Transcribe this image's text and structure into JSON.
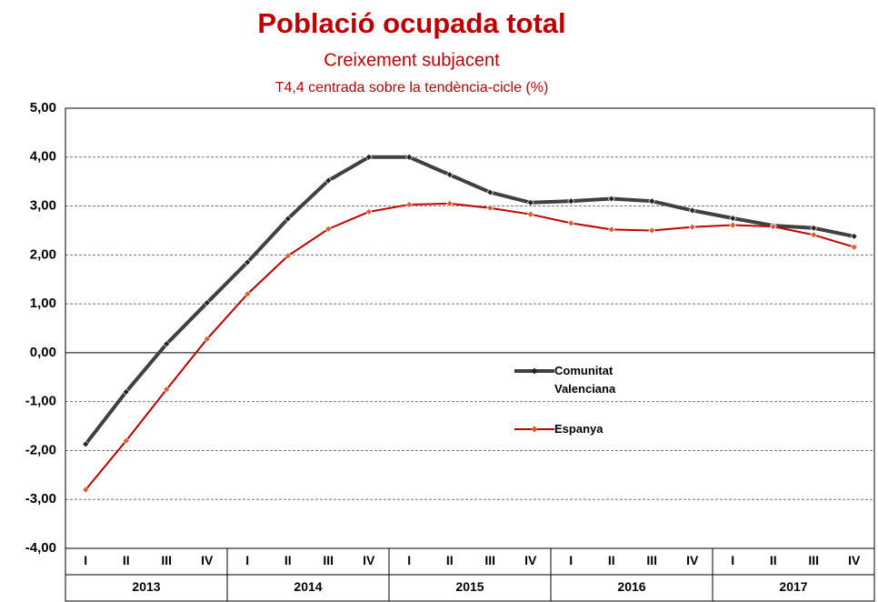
{
  "chart_data": {
    "type": "line",
    "title": "Població ocupada total",
    "subtitle": "Creixement subjacent",
    "subtitle2": "T4,4 centrada sobre la tendència-cicle (%)",
    "categories": [
      "I",
      "II",
      "III",
      "IV",
      "I",
      "II",
      "III",
      "IV",
      "I",
      "II",
      "III",
      "IV",
      "I",
      "II",
      "III",
      "IV",
      "I",
      "II",
      "III",
      "IV"
    ],
    "years": [
      "2013",
      "2014",
      "2015",
      "2016",
      "2017"
    ],
    "series": [
      {
        "name": "Comunitat Valenciana",
        "color": "#404040",
        "values": [
          -1.87,
          -0.8,
          0.18,
          1.02,
          1.85,
          2.74,
          3.52,
          4.0,
          4.0,
          3.64,
          3.28,
          3.07,
          3.1,
          3.15,
          3.1,
          2.91,
          2.75,
          2.6,
          2.55,
          2.38
        ]
      },
      {
        "name": "Espanya",
        "color": "#c00000",
        "values": [
          -2.8,
          -1.8,
          -0.75,
          0.28,
          1.2,
          1.98,
          2.53,
          2.88,
          3.03,
          3.05,
          2.96,
          2.83,
          2.65,
          2.52,
          2.5,
          2.57,
          2.61,
          2.58,
          2.41,
          2.16
        ]
      }
    ],
    "ylim": [
      -4,
      5
    ],
    "yticks": [
      {
        "value": -4,
        "label": "-4,00"
      },
      {
        "value": -3,
        "label": "-3,00"
      },
      {
        "value": -2,
        "label": "-2,00"
      },
      {
        "value": -1,
        "label": "-1,00"
      },
      {
        "value": 0,
        "label": "0,00"
      },
      {
        "value": 1,
        "label": "1,00"
      },
      {
        "value": 2,
        "label": "2,00"
      },
      {
        "value": 3,
        "label": "3,00"
      },
      {
        "value": 4,
        "label": "4,00"
      },
      {
        "value": 5,
        "label": "5,00"
      }
    ],
    "grid": true
  }
}
